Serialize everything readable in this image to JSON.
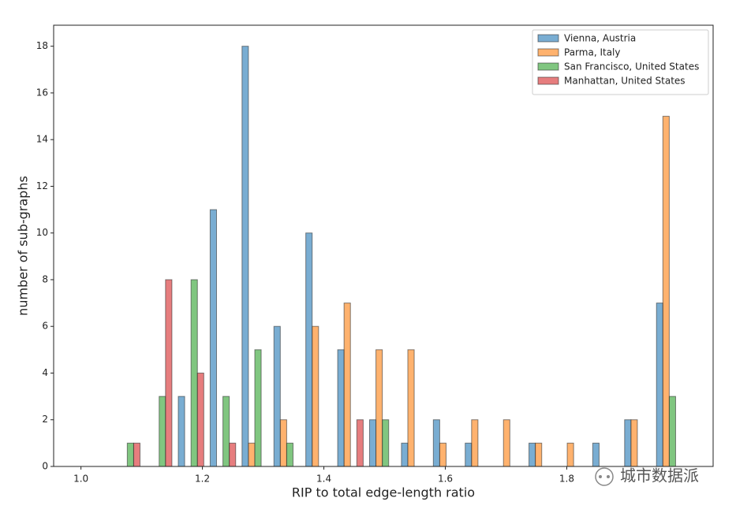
{
  "chart_data": {
    "type": "histogram",
    "xlabel": "RIP to total edge-length ratio",
    "ylabel": "number of sub-graphs",
    "bins": [
      1.05,
      1.1025,
      1.155,
      1.2075,
      1.26,
      1.3125,
      1.365,
      1.4175,
      1.47,
      1.5225,
      1.575,
      1.6275,
      1.68,
      1.7325,
      1.785,
      1.8375,
      1.89,
      1.9425,
      1.995
    ],
    "series": [
      {
        "name": "Vienna, Austria",
        "color": "#1f77b4",
        "values": [
          0,
          0,
          3,
          11,
          18,
          6,
          10,
          5,
          2,
          1,
          2,
          1,
          0,
          1,
          0,
          1,
          2,
          7
        ]
      },
      {
        "name": "Parma, Italy",
        "color": "#ff7f0e",
        "values": [
          0,
          0,
          0,
          0,
          1,
          2,
          6,
          7,
          5,
          5,
          1,
          2,
          2,
          1,
          1,
          0,
          2,
          15
        ]
      },
      {
        "name": "San Francisco, United States",
        "color": "#2ca02c",
        "values": [
          1,
          3,
          8,
          3,
          5,
          1,
          0,
          0,
          2,
          0,
          0,
          0,
          0,
          0,
          0,
          0,
          0,
          3
        ]
      },
      {
        "name": "Manhattan, United States",
        "color": "#d62728",
        "values": [
          1,
          8,
          4,
          1,
          0,
          0,
          0,
          2,
          0,
          0,
          0,
          0,
          0,
          0,
          0,
          0,
          0,
          0
        ]
      }
    ],
    "xlim": [
      0.955,
      2.041
    ],
    "ylim": [
      0,
      18.9
    ],
    "xticks": [
      {
        "value": 1,
        "label": "1.0"
      },
      1.2,
      1.4,
      1.6,
      1.8
    ],
    "yticks": [
      0,
      2,
      4,
      6,
      8,
      10,
      12,
      14,
      16,
      18
    ],
    "legend": "upper right",
    "watermark": "城市数据派"
  }
}
